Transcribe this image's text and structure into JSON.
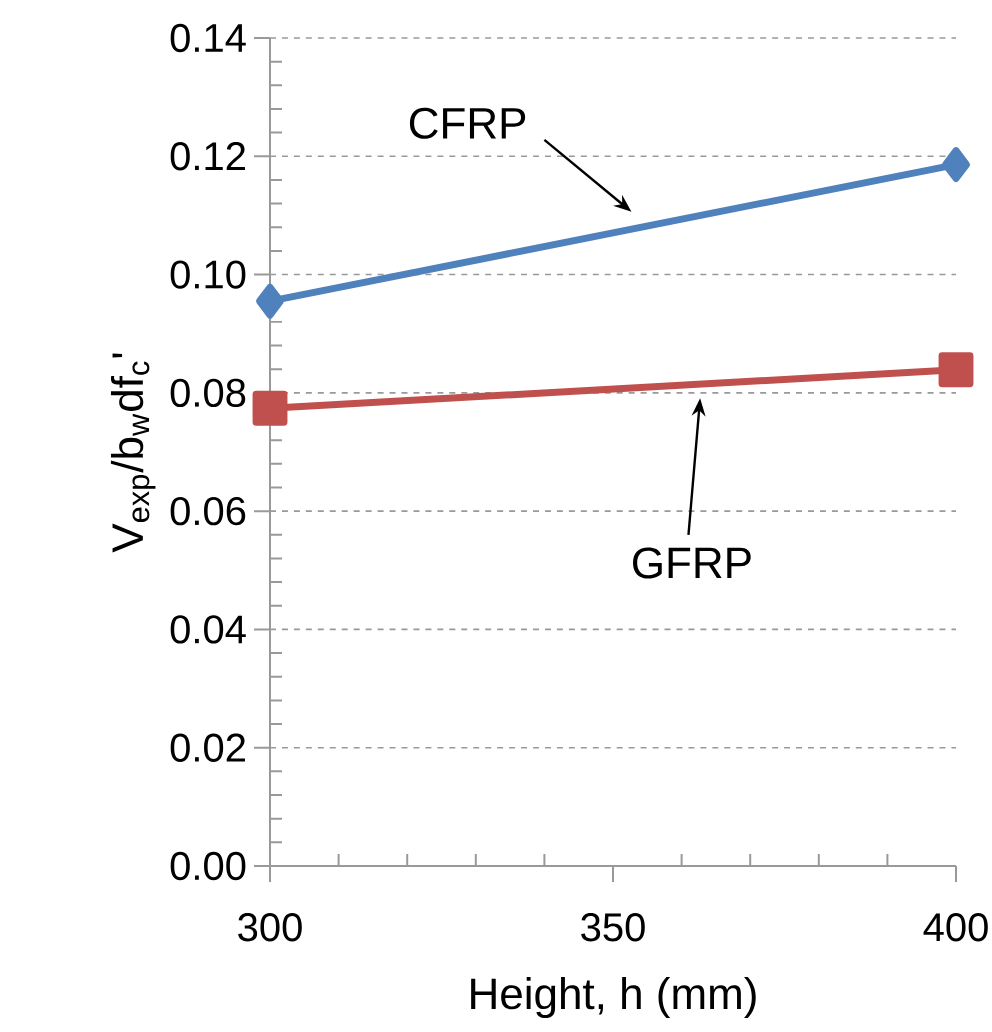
{
  "chart_data": {
    "type": "line",
    "xlabel": "Height, h (mm)",
    "ylabel": "V$_{exp}$/b$_{w}$df$_{c}$'",
    "x": [
      300,
      400
    ],
    "series": [
      {
        "color": "#4f81bd",
        "marker": "diamond",
        "values": [
          0.0955,
          0.1186
        ]
      },
      {
        "color": "#c0504d",
        "marker": "square",
        "values": [
          0.0774,
          0.0839
        ]
      }
    ],
    "annotations": [
      "CFRP",
      "GFRP"
    ],
    "xlim": [
      300,
      400
    ],
    "ylim": [
      0,
      0.14
    ],
    "xticks": [
      300,
      350,
      400
    ],
    "yticks": [
      {
        "value": 0,
        "label": "0.00"
      },
      {
        "value": 0.02,
        "label": "0.02"
      },
      {
        "value": 0.04,
        "label": "0.04"
      },
      {
        "value": 0.06,
        "label": "0.06"
      },
      {
        "value": 0.08,
        "label": "0.08"
      },
      {
        "value": 0.1,
        "label": "0.10"
      },
      {
        "value": 0.12,
        "label": "0.12"
      },
      {
        "value": 0.14,
        "label": "0.14"
      }
    ],
    "grid": "y",
    "line_style": "solid"
  }
}
